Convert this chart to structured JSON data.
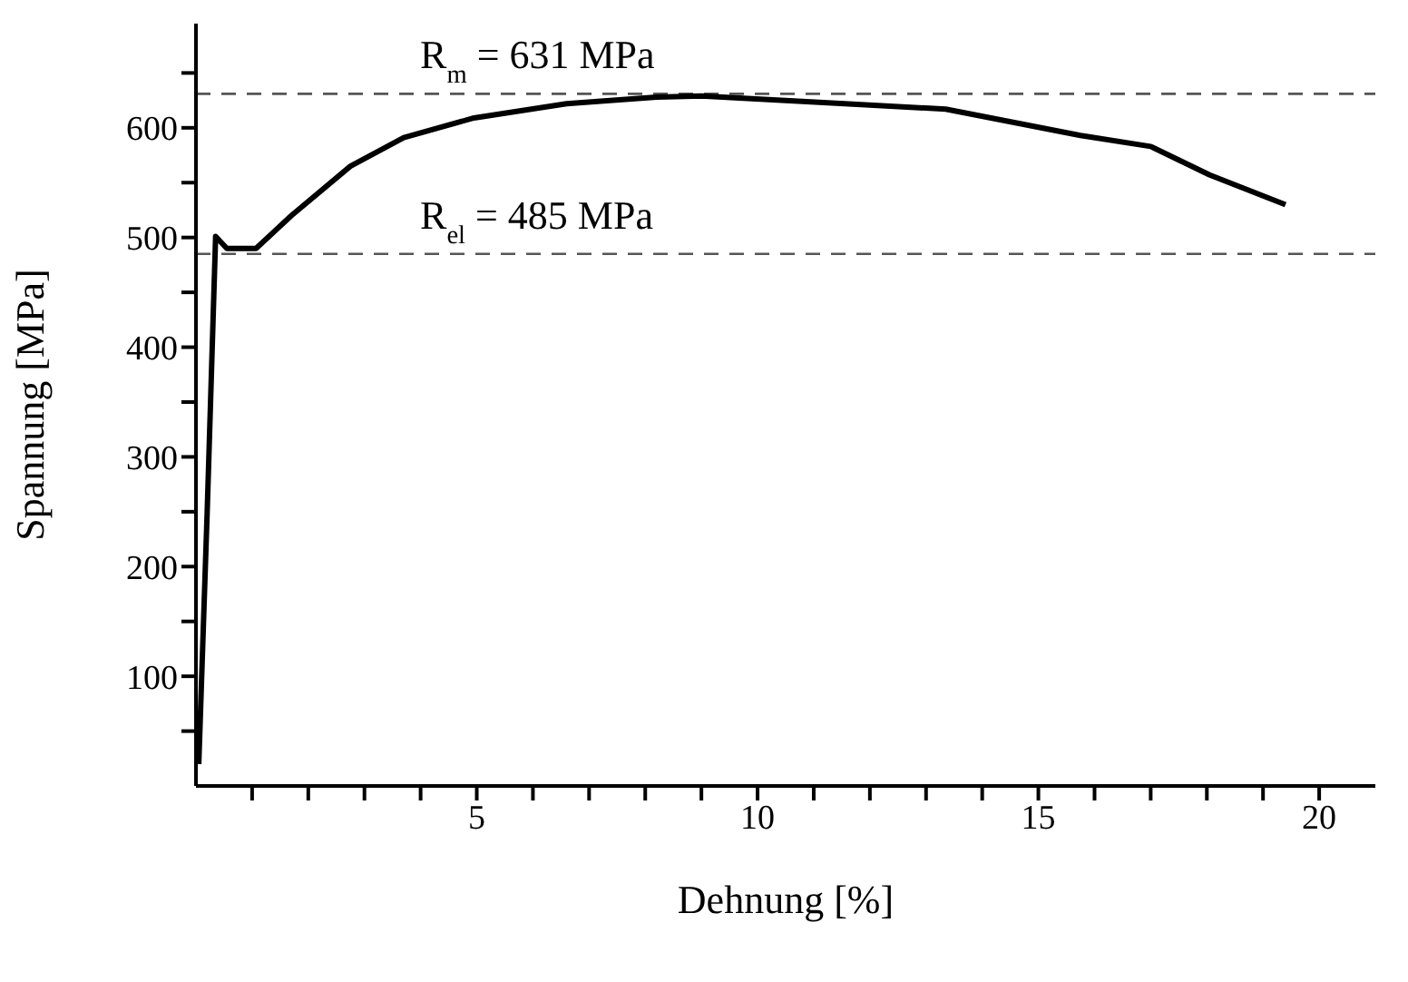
{
  "chart_data": {
    "type": "line",
    "xlabel": "Dehnung [%]",
    "ylabel": "Spannung [MPa]",
    "xlim": [
      0,
      21
    ],
    "ylim": [
      0,
      695
    ],
    "xticks": [
      {
        "value": 1,
        "label": null
      },
      {
        "value": 2,
        "label": null
      },
      {
        "value": 3,
        "label": null
      },
      {
        "value": 4,
        "label": null
      },
      5,
      {
        "value": 6,
        "label": null
      },
      {
        "value": 7,
        "label": null
      },
      {
        "value": 8,
        "label": null
      },
      {
        "value": 9,
        "label": null
      },
      10,
      {
        "value": 11,
        "label": null
      },
      {
        "value": 12,
        "label": null
      },
      {
        "value": 13,
        "label": null
      },
      {
        "value": 14,
        "label": null
      },
      15,
      {
        "value": 16,
        "label": null
      },
      {
        "value": 17,
        "label": null
      },
      {
        "value": 18,
        "label": null
      },
      {
        "value": 19,
        "label": null
      },
      20
    ],
    "yticks": [
      {
        "value": 50,
        "label": null
      },
      100,
      {
        "value": 150,
        "label": null
      },
      200,
      {
        "value": 250,
        "label": null
      },
      300,
      {
        "value": 350,
        "label": null
      },
      400,
      {
        "value": 450,
        "label": null
      },
      500,
      {
        "value": 550,
        "label": null
      },
      600,
      {
        "value": 650,
        "label": null
      }
    ],
    "x": [
      0.05,
      0.2,
      0.35,
      0.55,
      1.07,
      1.7,
      2.75,
      3.7,
      4.95,
      6.6,
      8.2,
      9.0,
      11.55,
      13.35,
      15.75,
      17.0,
      18.05,
      19.4
    ],
    "series": [
      {
        "color": "#000000",
        "values": [
          20,
          250,
          501,
          490,
          490,
          520,
          565,
          591,
          609,
          622,
          628,
          629,
          622,
          617,
          593,
          583,
          557,
          530
        ]
      }
    ],
    "marker": "none",
    "line_style": "solid",
    "grid": false,
    "ref_lines": [
      {
        "axis": "y",
        "value": 631,
        "label": "R$_{m}$ = 631 MPa",
        "color": "#555555",
        "line_style": "dashed"
      },
      {
        "axis": "y",
        "value": 485,
        "label": "R$_{el}$ = 485 MPa",
        "color": "#555555",
        "line_style": "dashed"
      }
    ]
  }
}
